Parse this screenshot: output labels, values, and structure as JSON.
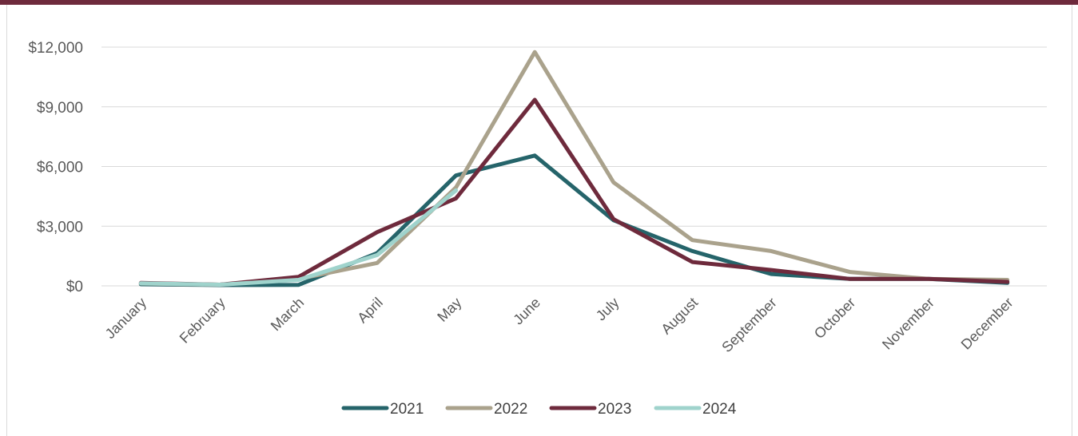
{
  "chart_data": {
    "type": "line",
    "title": "",
    "xlabel": "",
    "ylabel": "",
    "categories": [
      "January",
      "February",
      "March",
      "April",
      "May",
      "June",
      "July",
      "August",
      "September",
      "October",
      "November",
      "December"
    ],
    "ylim": [
      0,
      13000
    ],
    "yticks": [
      0,
      3000,
      6000,
      9000,
      12000
    ],
    "ytick_labels": [
      "$0",
      "$3,000",
      "$6,000",
      "$9,000",
      "$12,000"
    ],
    "grid": true,
    "legend_position": "bottom",
    "series": [
      {
        "name": "2021",
        "color": "#25646a",
        "values": [
          80,
          40,
          50,
          1650,
          5550,
          6550,
          3300,
          1750,
          600,
          350,
          350,
          150
        ]
      },
      {
        "name": "2022",
        "color": "#aaa28c",
        "values": [
          120,
          60,
          350,
          1150,
          4950,
          11750,
          5200,
          2300,
          1750,
          700,
          350,
          300
        ]
      },
      {
        "name": "2023",
        "color": "#6e2a3c",
        "values": [
          150,
          60,
          450,
          2700,
          4400,
          9350,
          3350,
          1200,
          800,
          350,
          350,
          200
        ]
      },
      {
        "name": "2024",
        "color": "#9fd3cc",
        "values": [
          130,
          60,
          300,
          1550,
          4800,
          null,
          null,
          null,
          null,
          null,
          null,
          null
        ]
      }
    ]
  }
}
